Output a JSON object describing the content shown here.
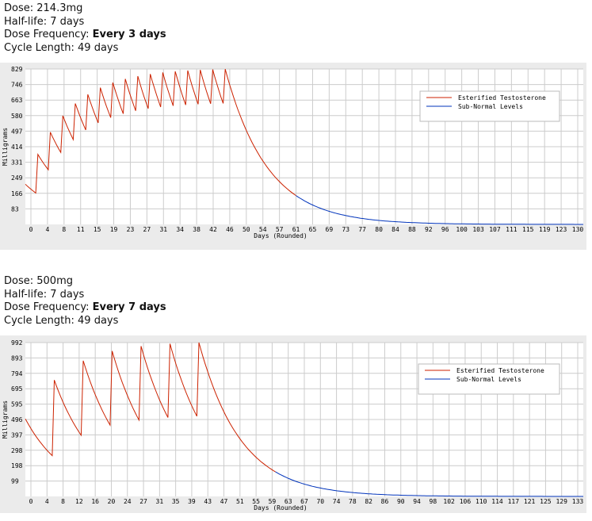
{
  "panels": [
    {
      "info": {
        "dose_label": "Dose: ",
        "dose_value": "214.3mg",
        "halflife_label": "Half-life: ",
        "halflife_value": "7 days",
        "freq_label": "Dose Frequency: ",
        "freq_value": "Every 3 days",
        "cycle_label": "Cycle Length: ",
        "cycle_value": "49 days"
      }
    },
    {
      "info": {
        "dose_label": "Dose: ",
        "dose_value": "500mg",
        "halflife_label": "Half-life: ",
        "halflife_value": "7 days",
        "freq_label": "Dose Frequency: ",
        "freq_value": "Every 7 days",
        "cycle_label": "Cycle Length: ",
        "cycle_value": "49 days"
      }
    }
  ],
  "colors": {
    "series_main": "#cc2200",
    "series_low": "#0033bb",
    "grid": "#cccccc",
    "plot_bg": "#ffffff",
    "panel_bg": "#ebebeb"
  },
  "chart_data": [
    {
      "type": "line",
      "xlabel": "Days (Rounded)",
      "ylabel": "Milligrams",
      "xlim": [
        0,
        134
      ],
      "ylim": [
        0,
        829
      ],
      "grid": true,
      "legend_position": "top-right",
      "y_ticks": [
        "83",
        "166",
        "249",
        "331",
        "414",
        "497",
        "580",
        "663",
        "746",
        "829"
      ],
      "x_ticks": [
        "0",
        "4",
        "8",
        "11",
        "15",
        "19",
        "23",
        "27",
        "31",
        "34",
        "38",
        "42",
        "46",
        "50",
        "54",
        "57",
        "61",
        "65",
        "69",
        "73",
        "77",
        "80",
        "84",
        "88",
        "92",
        "96",
        "100",
        "103",
        "107",
        "111",
        "115",
        "119",
        "123",
        "130"
      ],
      "dose_mg": 214.3,
      "dose_interval_days": 3,
      "half_life_days": 7,
      "cycle_length_days": 49,
      "threshold_mg": 160,
      "series": [
        {
          "name": "Esterified Testosterone",
          "color": "#cc2200"
        },
        {
          "name": "Sub-Normal Levels",
          "color": "#0033bb"
        }
      ]
    },
    {
      "type": "line",
      "xlabel": "Days (Rounded)",
      "ylabel": "Milligrams",
      "xlim": [
        0,
        135
      ],
      "ylim": [
        0,
        992
      ],
      "grid": true,
      "legend_position": "top-right",
      "y_ticks": [
        "99",
        "198",
        "298",
        "397",
        "496",
        "595",
        "695",
        "794",
        "893",
        "992"
      ],
      "x_ticks": [
        "0",
        "4",
        "8",
        "12",
        "16",
        "20",
        "24",
        "27",
        "31",
        "35",
        "39",
        "43",
        "47",
        "51",
        "55",
        "59",
        "63",
        "67",
        "70",
        "74",
        "78",
        "82",
        "86",
        "90",
        "94",
        "98",
        "102",
        "106",
        "110",
        "114",
        "117",
        "121",
        "125",
        "129",
        "133"
      ],
      "dose_mg": 500,
      "dose_interval_days": 7,
      "half_life_days": 7,
      "cycle_length_days": 49,
      "threshold_mg": 160,
      "series": [
        {
          "name": "Esterified Testosterone",
          "color": "#cc2200"
        },
        {
          "name": "Sub-Normal Levels",
          "color": "#0033bb"
        }
      ]
    }
  ]
}
